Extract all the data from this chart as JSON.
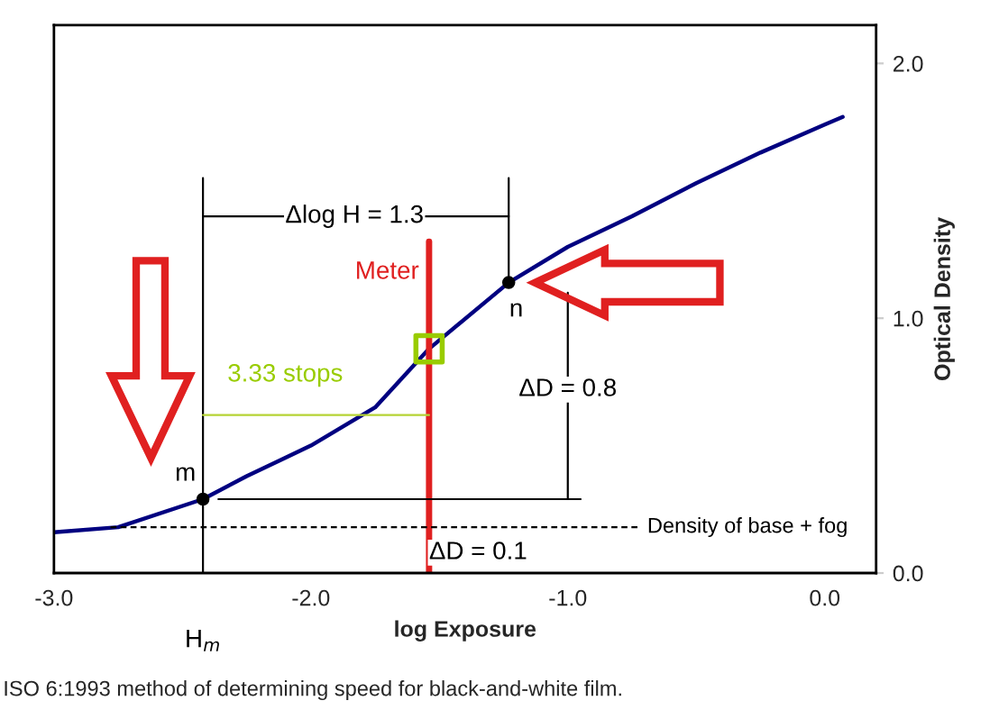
{
  "chart_data": {
    "type": "line",
    "xlabel": "log Exposure",
    "ylabel": "Optical Density",
    "xlim": [
      -3.0,
      0.2
    ],
    "ylim": [
      0,
      2.15
    ],
    "xticks": [
      {
        "value": -3,
        "label": "-3.0"
      },
      {
        "value": -2,
        "label": "-2.0"
      },
      {
        "value": -1,
        "label": "-1.0"
      },
      {
        "value": 0,
        "label": "0.0"
      }
    ],
    "yticks": [
      {
        "value": 0,
        "label": "0.0"
      },
      {
        "value": 1,
        "label": "1.0"
      },
      {
        "value": 2,
        "label": "2.0"
      }
    ],
    "grid": false,
    "legend": false,
    "series": [
      {
        "color": "#000080",
        "x": [
          -3.0,
          -2.75,
          -2.42,
          -2.25,
          -2.0,
          -1.75,
          -1.54,
          -1.23,
          -1.0,
          -0.75,
          -0.5,
          -0.25,
          0.0,
          0.07
        ],
        "values": [
          0.16,
          0.18,
          0.29,
          0.38,
          0.5,
          0.65,
          0.88,
          1.14,
          1.28,
          1.4,
          1.53,
          1.65,
          1.76,
          1.79
        ]
      },
      {
        "color": "#e02020",
        "x": [
          -1.54,
          -1.54
        ],
        "values": [
          0,
          1.3
        ]
      },
      {
        "color": "#000000",
        "x": [
          -2.42,
          -2.42
        ],
        "values": [
          0,
          1.55
        ]
      },
      {
        "color": "#000000",
        "x": [
          -1.23,
          -1.23
        ],
        "values": [
          1.14,
          1.55
        ]
      },
      {
        "color": "#000000",
        "x": [
          -2.42,
          -1.23
        ],
        "values": [
          1.4,
          1.4
        ]
      },
      {
        "color": "#000000",
        "x": [
          -2.36,
          -0.95
        ],
        "values": [
          0.29,
          0.29
        ]
      },
      {
        "color": "#000000",
        "x": [
          -1.0,
          -1.0
        ],
        "values": [
          0.29,
          1.1
        ]
      },
      {
        "color": "#000000",
        "x": [
          -2.78,
          -0.72
        ],
        "values": [
          0.18,
          0.18
        ],
        "line_style": "dashed"
      },
      {
        "color": "#b5d334",
        "x": [
          -2.42,
          -1.54
        ],
        "values": [
          0.62,
          0.62
        ]
      },
      {
        "type": "scatter",
        "color": "#000000",
        "x": [
          -2.42,
          -1.23
        ],
        "values": [
          0.29,
          1.14
        ],
        "marker": "circle"
      },
      {
        "type": "scatter",
        "color": "#99cc00",
        "x": [
          -1.54
        ],
        "values": [
          0.88
        ],
        "marker": "square"
      }
    ],
    "annotations": [
      {
        "text": "Δlog H = 1.3",
        "x": -1.83,
        "y": 1.4
      },
      {
        "text": "Meter",
        "x": -1.54,
        "y": 1.18
      },
      {
        "text": "n",
        "x": -1.23,
        "y": 1.14
      },
      {
        "text": "3.33 stops",
        "x": -2.1,
        "y": 0.62
      },
      {
        "text": "ΔD = 0.8",
        "x": -1.0,
        "y": 0.72
      },
      {
        "text": "m",
        "x": -2.42,
        "y": 0.29
      },
      {
        "text": "Density of base + fog",
        "x": -0.72,
        "y": 0.18
      },
      {
        "text": "ΔD = 0.1",
        "x": -1.54,
        "y": 0.08
      },
      {
        "text": "H$_{m}$",
        "x": -2.42,
        "y": 0
      },
      "ISO 6:1993 method of determining speed for black-and-white film."
    ]
  }
}
